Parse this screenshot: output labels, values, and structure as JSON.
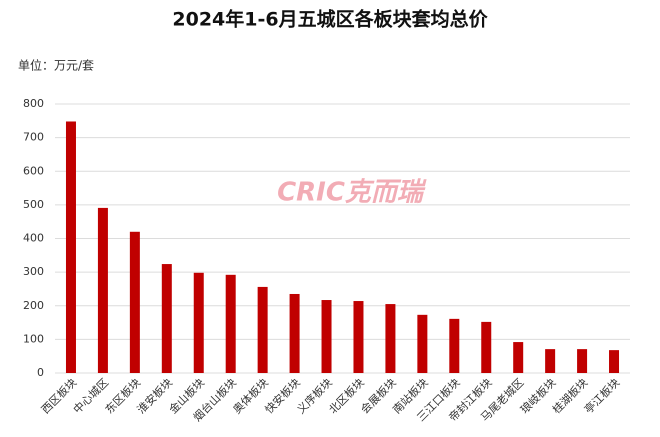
{
  "chart_data": {
    "type": "bar",
    "title": "2024年1-6月五城区各板块套均总价",
    "unit_label": "单位：万元/套",
    "watermark": "CRIC克而瑞",
    "categories": [
      "西区板块",
      "中心城区",
      "东区板块",
      "淮安板块",
      "金山板块",
      "烟台山板块",
      "奥体板块",
      "快安板块",
      "义序板块",
      "北区板块",
      "会展板块",
      "南站板块",
      "三江口板块",
      "帝封江板块",
      "马尾老城区",
      "琅岐板块",
      "桂湖板块",
      "亭江板块"
    ],
    "values": [
      748,
      491,
      420,
      324,
      298,
      292,
      256,
      235,
      217,
      214,
      205,
      173,
      161,
      152,
      92,
      71,
      71,
      68
    ],
    "color": "#c00000",
    "ylim": [
      0,
      800
    ],
    "yticks": [
      0,
      100,
      200,
      300,
      400,
      500,
      600,
      700,
      800
    ],
    "grid": true
  }
}
